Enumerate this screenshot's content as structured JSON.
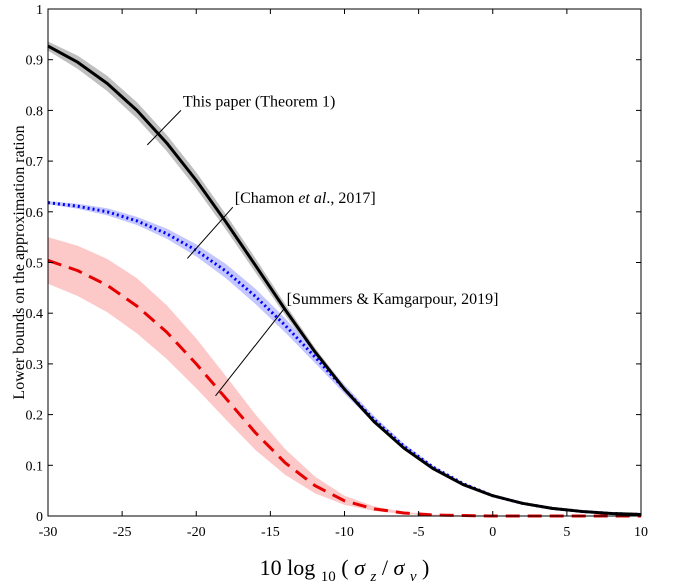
{
  "chart_data": {
    "type": "line",
    "title": "",
    "xlabel": "10 log₁₀(σz/σv)",
    "xlabel_parts": {
      "prefix": "10 log",
      "sub": "10",
      "open": "(",
      "sigma1": "σ",
      "sub1": "z",
      "slash": "/",
      "sigma2": "σ",
      "sub2": "v",
      "close": ")"
    },
    "ylabel": "Lower bounds on the approximation ration",
    "xlim": [
      -30,
      10
    ],
    "ylim": [
      0,
      1
    ],
    "xticks": [
      "-30",
      "-25",
      "-20",
      "-15",
      "-10",
      "-5",
      "0",
      "5",
      "10"
    ],
    "yticks": [
      "0",
      "0.1",
      "0.2",
      "0.3",
      "0.4",
      "0.5",
      "0.6",
      "0.7",
      "0.8",
      "0.9",
      "1"
    ],
    "grid": false,
    "x": [
      -30,
      -28,
      -26,
      -24,
      -22,
      -20,
      -18,
      -16,
      -14,
      -12,
      -10,
      -8,
      -6,
      -4,
      -2,
      0,
      2,
      4,
      6,
      8,
      10
    ],
    "series": [
      {
        "key": "theorem1",
        "color": "#000000",
        "band_color": "#bfbfbf",
        "style": "solid",
        "values": [
          0.927,
          0.895,
          0.853,
          0.8,
          0.736,
          0.662,
          0.58,
          0.494,
          0.407,
          0.324,
          0.25,
          0.186,
          0.134,
          0.093,
          0.062,
          0.04,
          0.025,
          0.015,
          0.009,
          0.005,
          0.003
        ],
        "lower": [
          0.918,
          0.882,
          0.838,
          0.784,
          0.72,
          0.646,
          0.565,
          0.48,
          0.396,
          0.316,
          0.244,
          0.182,
          0.131,
          0.091,
          0.061,
          0.039,
          0.024,
          0.014,
          0.008,
          0.005,
          0.003
        ],
        "upper": [
          0.936,
          0.908,
          0.868,
          0.816,
          0.752,
          0.678,
          0.595,
          0.508,
          0.418,
          0.332,
          0.256,
          0.19,
          0.137,
          0.095,
          0.063,
          0.041,
          0.026,
          0.016,
          0.01,
          0.006,
          0.004
        ]
      },
      {
        "key": "chamon",
        "color": "#0000ff",
        "band_color": "#c3c6ff",
        "style": "dotted",
        "values": [
          0.618,
          0.611,
          0.6,
          0.582,
          0.557,
          0.524,
          0.483,
          0.433,
          0.376,
          0.314,
          0.25,
          0.19,
          0.138,
          0.096,
          0.064,
          0.04,
          0.025,
          0.015,
          0.009,
          0.005,
          0.003
        ],
        "lower": [
          0.615,
          0.606,
          0.593,
          0.574,
          0.547,
          0.512,
          0.469,
          0.418,
          0.362,
          0.302,
          0.241,
          0.183,
          0.133,
          0.093,
          0.062,
          0.039,
          0.024,
          0.014,
          0.008,
          0.005,
          0.003
        ],
        "upper": [
          0.621,
          0.616,
          0.607,
          0.59,
          0.567,
          0.536,
          0.497,
          0.448,
          0.39,
          0.326,
          0.259,
          0.197,
          0.143,
          0.099,
          0.066,
          0.041,
          0.026,
          0.016,
          0.01,
          0.006,
          0.004
        ]
      },
      {
        "key": "summers",
        "color": "#e60000",
        "band_color": "#fdc8c8",
        "style": "dashed",
        "values": [
          0.504,
          0.484,
          0.455,
          0.414,
          0.363,
          0.3,
          0.232,
          0.164,
          0.105,
          0.06,
          0.03,
          0.014,
          0.006,
          0.002,
          0.001,
          0.0,
          0.0,
          0.0,
          0.0,
          0.0,
          0.0
        ],
        "lower": [
          0.458,
          0.434,
          0.402,
          0.36,
          0.31,
          0.252,
          0.19,
          0.13,
          0.081,
          0.045,
          0.022,
          0.01,
          0.004,
          0.001,
          0.0,
          0.0,
          0.0,
          0.0,
          0.0,
          0.0,
          0.0
        ],
        "upper": [
          0.55,
          0.533,
          0.507,
          0.469,
          0.416,
          0.35,
          0.276,
          0.2,
          0.132,
          0.078,
          0.04,
          0.019,
          0.008,
          0.003,
          0.001,
          0.0,
          0.0,
          0.0,
          0.0,
          0.0,
          0.0
        ]
      }
    ],
    "annotations": [
      {
        "key": "theorem1",
        "text_parts": [
          {
            "t": "This paper (Theorem 1)",
            "italic": false
          }
        ],
        "at": [
          -23.3,
          0.732
        ],
        "text_anchor": [
          -20.9,
          0.808
        ]
      },
      {
        "key": "chamon",
        "text_parts": [
          {
            "t": "[Chamon ",
            "italic": false
          },
          {
            "t": "et al",
            "italic": true
          },
          {
            "t": "., 2017]",
            "italic": false
          }
        ],
        "at": [
          -20.6,
          0.508
        ],
        "text_anchor": [
          -17.4,
          0.617
        ]
      },
      {
        "key": "summers",
        "text_parts": [
          {
            "t": "[Summers & Kamgarpour, 2019]",
            "italic": false
          }
        ],
        "at": [
          -18.7,
          0.237
        ],
        "text_anchor": [
          -13.9,
          0.418
        ]
      }
    ]
  }
}
